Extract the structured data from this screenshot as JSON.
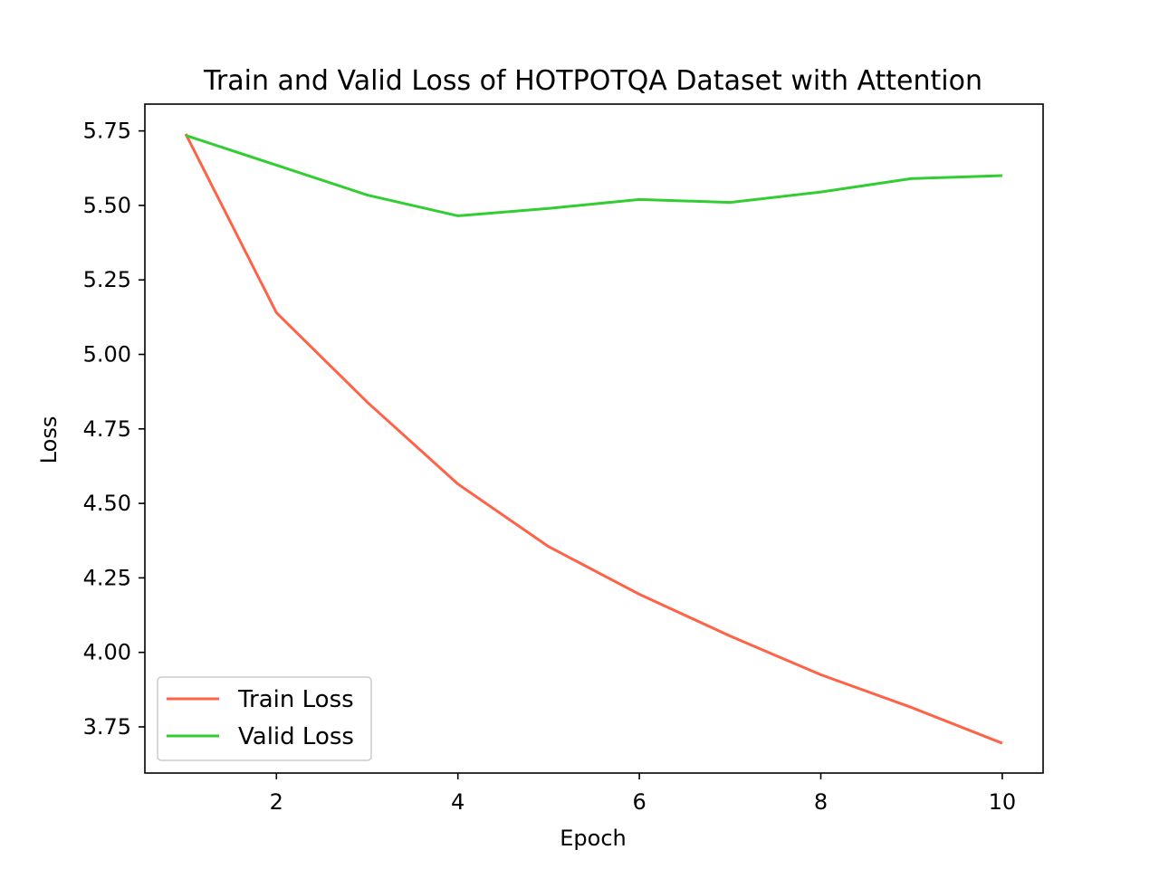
{
  "chart_data": {
    "type": "line",
    "title": "Train and Valid Loss of HOTPOTQA Dataset with Attention",
    "xlabel": "Epoch",
    "ylabel": "Loss",
    "xlim": [
      0.55,
      10.45
    ],
    "ylim": [
      3.595,
      5.84
    ],
    "x_ticks": [
      2,
      4,
      6,
      8,
      10
    ],
    "x_tick_labels": [
      "2",
      "4",
      "6",
      "8",
      "10"
    ],
    "y_ticks": [
      3.75,
      4.0,
      4.25,
      4.5,
      4.75,
      5.0,
      5.25,
      5.5,
      5.75
    ],
    "y_tick_labels": [
      "3.75",
      "4.00",
      "4.25",
      "4.50",
      "4.75",
      "5.00",
      "5.25",
      "5.50",
      "5.75"
    ],
    "grid": false,
    "legend_position": "lower-left",
    "x": [
      1,
      2,
      3,
      4,
      5,
      6,
      7,
      8,
      9,
      10
    ],
    "series": [
      {
        "name": "Train Loss",
        "color": "#ff6347",
        "values": [
          5.74,
          5.14,
          4.84,
          4.565,
          4.355,
          4.195,
          4.055,
          3.925,
          3.815,
          3.695
        ]
      },
      {
        "name": "Valid Loss",
        "color": "#32cd32",
        "values": [
          5.735,
          5.635,
          5.535,
          5.465,
          5.49,
          5.52,
          5.51,
          5.545,
          5.59,
          5.6
        ]
      }
    ]
  }
}
